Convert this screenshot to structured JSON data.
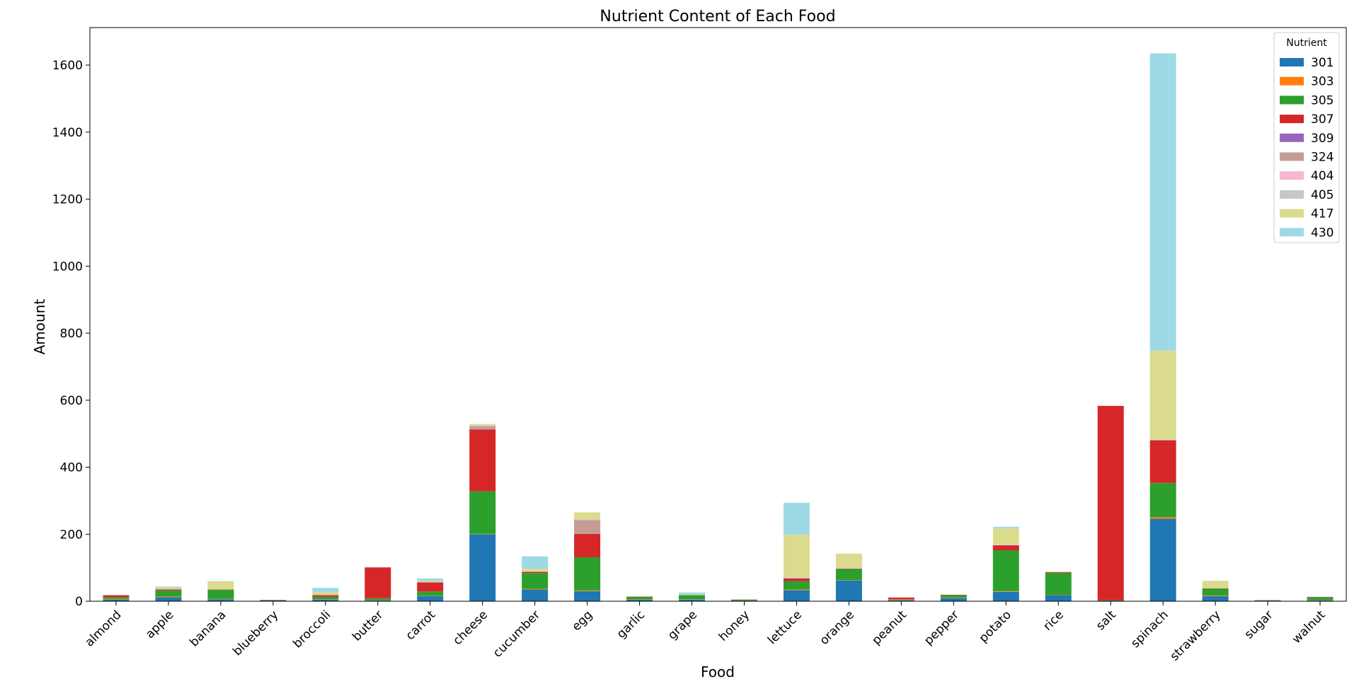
{
  "chart_data": {
    "type": "bar",
    "stacked": true,
    "title": "Nutrient Content of Each Food",
    "xlabel": "Food",
    "ylabel": "Amount",
    "ylim": [
      0,
      1712
    ],
    "yticks": [
      0,
      200,
      400,
      600,
      800,
      1000,
      1200,
      1400,
      1600
    ],
    "grid": false,
    "legend_title": "Nutrient",
    "legend_position": "top-right",
    "categories": [
      "almond",
      "apple",
      "banana",
      "blueberry",
      "broccoli",
      "butter",
      "carrot",
      "cheese",
      "cucumber",
      "egg",
      "garlic",
      "grape",
      "honey",
      "lettuce",
      "orange",
      "peanut",
      "pepper",
      "potato",
      "rice",
      "salt",
      "spinach",
      "strawberry",
      "sugar",
      "walnut"
    ],
    "series": [
      {
        "name": "301",
        "color": "#1f77b4",
        "values": [
          5,
          12,
          6,
          2,
          5,
          3,
          15,
          200,
          35,
          30,
          5,
          5,
          1,
          33,
          62,
          3,
          10,
          28,
          18,
          2,
          246,
          15,
          2,
          3
        ]
      },
      {
        "name": "303",
        "color": "#ff7f0e",
        "values": [
          2,
          2,
          1,
          0,
          1,
          1,
          1,
          1,
          2,
          2,
          1,
          1,
          0,
          2,
          1,
          2,
          1,
          2,
          1,
          0,
          5,
          2,
          0,
          1
        ]
      },
      {
        "name": "305",
        "color": "#2ca02c",
        "values": [
          5,
          18,
          27,
          1,
          7,
          5,
          13,
          127,
          47,
          99,
          7,
          12,
          3,
          25,
          33,
          1,
          7,
          122,
          66,
          1,
          102,
          20,
          0,
          8
        ]
      },
      {
        "name": "307",
        "color": "#d62728",
        "values": [
          6,
          3,
          1,
          1,
          5,
          92,
          27,
          184,
          4,
          70,
          1,
          0,
          1,
          8,
          1,
          5,
          1,
          15,
          2,
          580,
          127,
          1,
          1,
          1
        ]
      },
      {
        "name": "309",
        "color": "#9467bd",
        "values": [
          0,
          0,
          0,
          0,
          0,
          0,
          0,
          1,
          0,
          1,
          0,
          0,
          0,
          1,
          0,
          0,
          0,
          0,
          0,
          0,
          1,
          0,
          0,
          0
        ]
      },
      {
        "name": "324",
        "color": "#c49c94",
        "values": [
          0,
          0,
          0,
          0,
          0,
          0,
          0,
          10,
          0,
          40,
          0,
          0,
          0,
          0,
          0,
          0,
          0,
          0,
          0,
          0,
          0,
          0,
          0,
          0
        ]
      },
      {
        "name": "404",
        "color": "#f7b6d2",
        "values": [
          0,
          0,
          0,
          0,
          0,
          0,
          0,
          1,
          0,
          1,
          0,
          0,
          0,
          1,
          1,
          0,
          0,
          1,
          1,
          0,
          1,
          0,
          0,
          0
        ]
      },
      {
        "name": "405",
        "color": "#c7c7c7",
        "values": [
          0,
          4,
          1,
          0,
          1,
          0,
          2,
          1,
          1,
          2,
          0,
          0,
          0,
          1,
          1,
          0,
          0,
          1,
          0,
          0,
          1,
          0,
          0,
          0
        ]
      },
      {
        "name": "417",
        "color": "#dbdb8d",
        "values": [
          0,
          4,
          23,
          0,
          8,
          0,
          3,
          4,
          8,
          20,
          1,
          2,
          0,
          128,
          43,
          0,
          1,
          48,
          1,
          0,
          265,
          23,
          0,
          0
        ]
      },
      {
        "name": "430",
        "color": "#9edae5",
        "values": [
          0,
          1,
          1,
          0,
          13,
          0,
          7,
          0,
          37,
          0,
          0,
          6,
          0,
          95,
          0,
          0,
          0,
          5,
          0,
          0,
          887,
          0,
          0,
          0
        ]
      }
    ]
  }
}
